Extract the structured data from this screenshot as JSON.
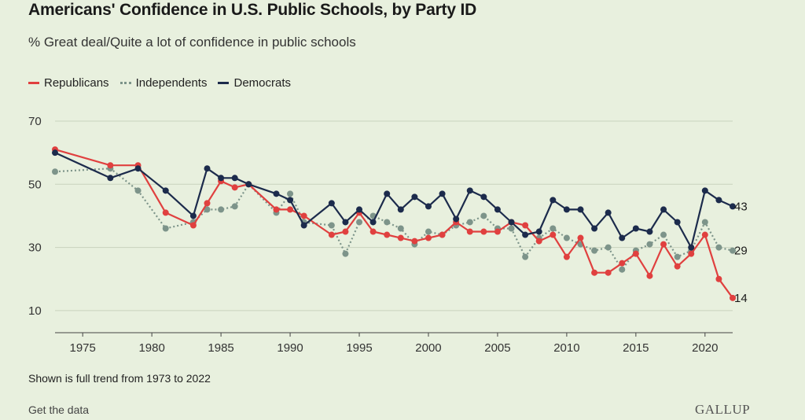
{
  "title": "Americans' Confidence in U.S. Public Schools, by Party ID",
  "subtitle": "% Great deal/Quite a lot of confidence in public schools",
  "footer_note": "Shown is full trend from 1973 to 2022",
  "get_data": "Get the data",
  "logo": "GALLUP",
  "colors": {
    "background": "#e8f0de",
    "republicans": "#e0403f",
    "independents": "#7d948a",
    "democrats": "#1c2b4c",
    "grid": "#c9d3bd"
  },
  "chart_data": {
    "type": "line",
    "title": "Americans' Confidence in U.S. Public Schools, by Party ID",
    "subtitle": "% Great deal/Quite a lot of confidence in public schools",
    "xlabel": "",
    "ylabel": "",
    "xlim": [
      1973,
      2022
    ],
    "ylim": [
      0,
      70
    ],
    "y_ticks": [
      10,
      30,
      50,
      70
    ],
    "x_ticks": [
      1975,
      1980,
      1985,
      1990,
      1995,
      2000,
      2005,
      2010,
      2015,
      2020
    ],
    "grid": true,
    "legend_position": "top-left",
    "series": [
      {
        "name": "Republicans",
        "style": "solid",
        "color": "#e0403f",
        "end_label": "14",
        "points": [
          [
            1973,
            61
          ],
          [
            1977,
            56
          ],
          [
            1979,
            56
          ],
          [
            1981,
            41
          ],
          [
            1983,
            37
          ],
          [
            1984,
            44
          ],
          [
            1985,
            51
          ],
          [
            1986,
            49
          ],
          [
            1987,
            50
          ],
          [
            1989,
            42
          ],
          [
            1990,
            42
          ],
          [
            1991,
            40
          ],
          [
            1993,
            34
          ],
          [
            1994,
            35
          ],
          [
            1995,
            41
          ],
          [
            1996,
            35
          ],
          [
            1997,
            34
          ],
          [
            1998,
            33
          ],
          [
            1999,
            32
          ],
          [
            2000,
            33
          ],
          [
            2001,
            34
          ],
          [
            2002,
            38
          ],
          [
            2003,
            35
          ],
          [
            2004,
            35
          ],
          [
            2005,
            35
          ],
          [
            2006,
            38
          ],
          [
            2007,
            37
          ],
          [
            2008,
            32
          ],
          [
            2009,
            34
          ],
          [
            2010,
            27
          ],
          [
            2011,
            33
          ],
          [
            2012,
            22
          ],
          [
            2013,
            22
          ],
          [
            2014,
            25
          ],
          [
            2015,
            28
          ],
          [
            2016,
            21
          ],
          [
            2017,
            31
          ],
          [
            2018,
            24
          ],
          [
            2019,
            28
          ],
          [
            2020,
            34
          ],
          [
            2021,
            20
          ],
          [
            2022,
            14
          ]
        ]
      },
      {
        "name": "Independents",
        "style": "dotted",
        "color": "#7d948a",
        "end_label": "29",
        "points": [
          [
            1973,
            54
          ],
          [
            1977,
            55
          ],
          [
            1979,
            48
          ],
          [
            1981,
            36
          ],
          [
            1983,
            38
          ],
          [
            1984,
            42
          ],
          [
            1985,
            42
          ],
          [
            1986,
            43
          ],
          [
            1987,
            50
          ],
          [
            1989,
            41
          ],
          [
            1990,
            47
          ],
          [
            1991,
            38
          ],
          [
            1993,
            37
          ],
          [
            1994,
            28
          ],
          [
            1995,
            38
          ],
          [
            1996,
            40
          ],
          [
            1997,
            38
          ],
          [
            1998,
            36
          ],
          [
            1999,
            31
          ],
          [
            2000,
            35
          ],
          [
            2001,
            34
          ],
          [
            2002,
            37
          ],
          [
            2003,
            38
          ],
          [
            2004,
            40
          ],
          [
            2005,
            36
          ],
          [
            2006,
            36
          ],
          [
            2007,
            27
          ],
          [
            2008,
            33
          ],
          [
            2009,
            36
          ],
          [
            2010,
            33
          ],
          [
            2011,
            31
          ],
          [
            2012,
            29
          ],
          [
            2013,
            30
          ],
          [
            2014,
            23
          ],
          [
            2015,
            29
          ],
          [
            2016,
            31
          ],
          [
            2017,
            34
          ],
          [
            2018,
            27
          ],
          [
            2019,
            29
          ],
          [
            2020,
            38
          ],
          [
            2021,
            30
          ],
          [
            2022,
            29
          ]
        ]
      },
      {
        "name": "Democrats",
        "style": "solid",
        "color": "#1c2b4c",
        "end_label": "43",
        "points": [
          [
            1973,
            60
          ],
          [
            1977,
            52
          ],
          [
            1979,
            55
          ],
          [
            1981,
            48
          ],
          [
            1983,
            40
          ],
          [
            1984,
            55
          ],
          [
            1985,
            52
          ],
          [
            1986,
            52
          ],
          [
            1987,
            50
          ],
          [
            1989,
            47
          ],
          [
            1990,
            45
          ],
          [
            1991,
            37
          ],
          [
            1993,
            44
          ],
          [
            1994,
            38
          ],
          [
            1995,
            42
          ],
          [
            1996,
            38
          ],
          [
            1997,
            47
          ],
          [
            1998,
            42
          ],
          [
            1999,
            46
          ],
          [
            2000,
            43
          ],
          [
            2001,
            47
          ],
          [
            2002,
            39
          ],
          [
            2003,
            48
          ],
          [
            2004,
            46
          ],
          [
            2005,
            42
          ],
          [
            2006,
            38
          ],
          [
            2007,
            34
          ],
          [
            2008,
            35
          ],
          [
            2009,
            45
          ],
          [
            2010,
            42
          ],
          [
            2011,
            42
          ],
          [
            2012,
            36
          ],
          [
            2013,
            41
          ],
          [
            2014,
            33
          ],
          [
            2015,
            36
          ],
          [
            2016,
            35
          ],
          [
            2017,
            42
          ],
          [
            2018,
            38
          ],
          [
            2019,
            30
          ],
          [
            2020,
            48
          ],
          [
            2021,
            45
          ],
          [
            2022,
            43
          ]
        ]
      }
    ]
  }
}
